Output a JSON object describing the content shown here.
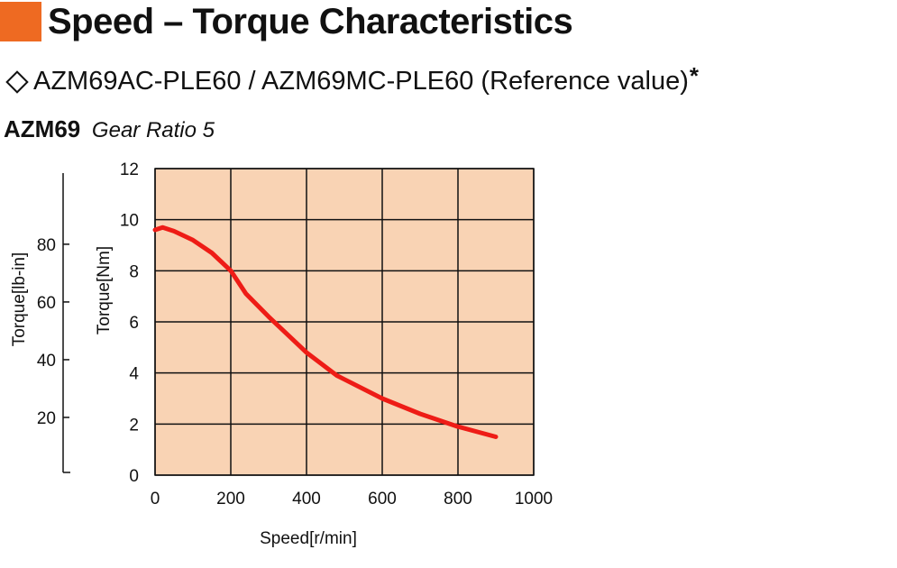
{
  "header": {
    "title": "Speed – Torque Characteristics",
    "accent_color": "#ee6a22",
    "subtitle": "AZM69AC-PLE60 / AZM69MC-PLE60 (Reference value)",
    "subtitle_marker": "*",
    "subtitle_icon": "diamond-outline-icon",
    "model": "AZM69",
    "gear_ratio": "Gear Ratio 5"
  },
  "chart_data": {
    "type": "line",
    "title": "",
    "xlabel": "Speed[r/min]",
    "ylabel": "Torque[Nm]",
    "ylabel_secondary": "Torque[lb-in]",
    "xlim": [
      0,
      1000
    ],
    "ylim": [
      0,
      12
    ],
    "x_ticks": [
      "0",
      "200",
      "400",
      "600",
      "800",
      "1000"
    ],
    "y_ticks": [
      "0",
      "2",
      "4",
      "6",
      "8",
      "10",
      "12"
    ],
    "y2_ticks": [
      "20",
      "40",
      "60",
      "80"
    ],
    "y2_values": [
      20,
      40,
      60,
      80
    ],
    "grid": true,
    "plot_background": "#f9d3b4",
    "line_color": "#ee1c16",
    "series": [
      {
        "x": [
          0,
          20,
          50,
          100,
          150,
          200,
          240,
          300,
          400,
          480,
          600,
          700,
          800,
          900
        ],
        "y": [
          9.6,
          9.7,
          9.55,
          9.2,
          8.7,
          8.0,
          7.1,
          6.2,
          4.8,
          3.9,
          3.0,
          2.4,
          1.9,
          1.5
        ]
      }
    ]
  }
}
